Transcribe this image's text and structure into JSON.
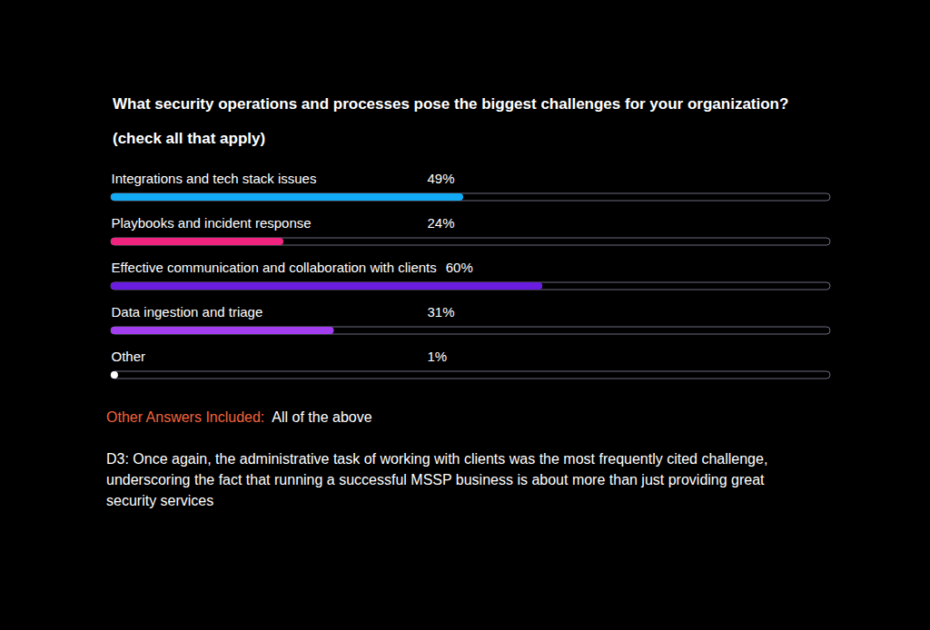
{
  "chart_data": {
    "type": "bar",
    "orientation": "horizontal",
    "title": "What security operations and processes pose the biggest challenges for your organization? (check all that apply)",
    "categories": [
      "Integrations and tech stack issues",
      "Playbooks and incident response",
      "Effective communication and collaboration with clients",
      "Data ingestion and triage",
      "Other"
    ],
    "values": [
      49,
      24,
      60,
      31,
      1
    ],
    "value_labels": [
      "49%",
      "24%",
      "60%",
      "31%",
      "1%"
    ],
    "colors": [
      "#12a9f5",
      "#f0247e",
      "#6a1de0",
      "#a23ef0",
      "#ffffff"
    ],
    "xlim": [
      0,
      100
    ],
    "tick_labels": false,
    "data_labels": true,
    "annotation": {
      "label": "Other Answers Included:",
      "text": "All of the above"
    },
    "caption": "D3: Once again, the administrative task of working with clients was the most frequently cited challenge, underscoring the fact that running a successful MSSP business is about more than just providing great security services"
  }
}
